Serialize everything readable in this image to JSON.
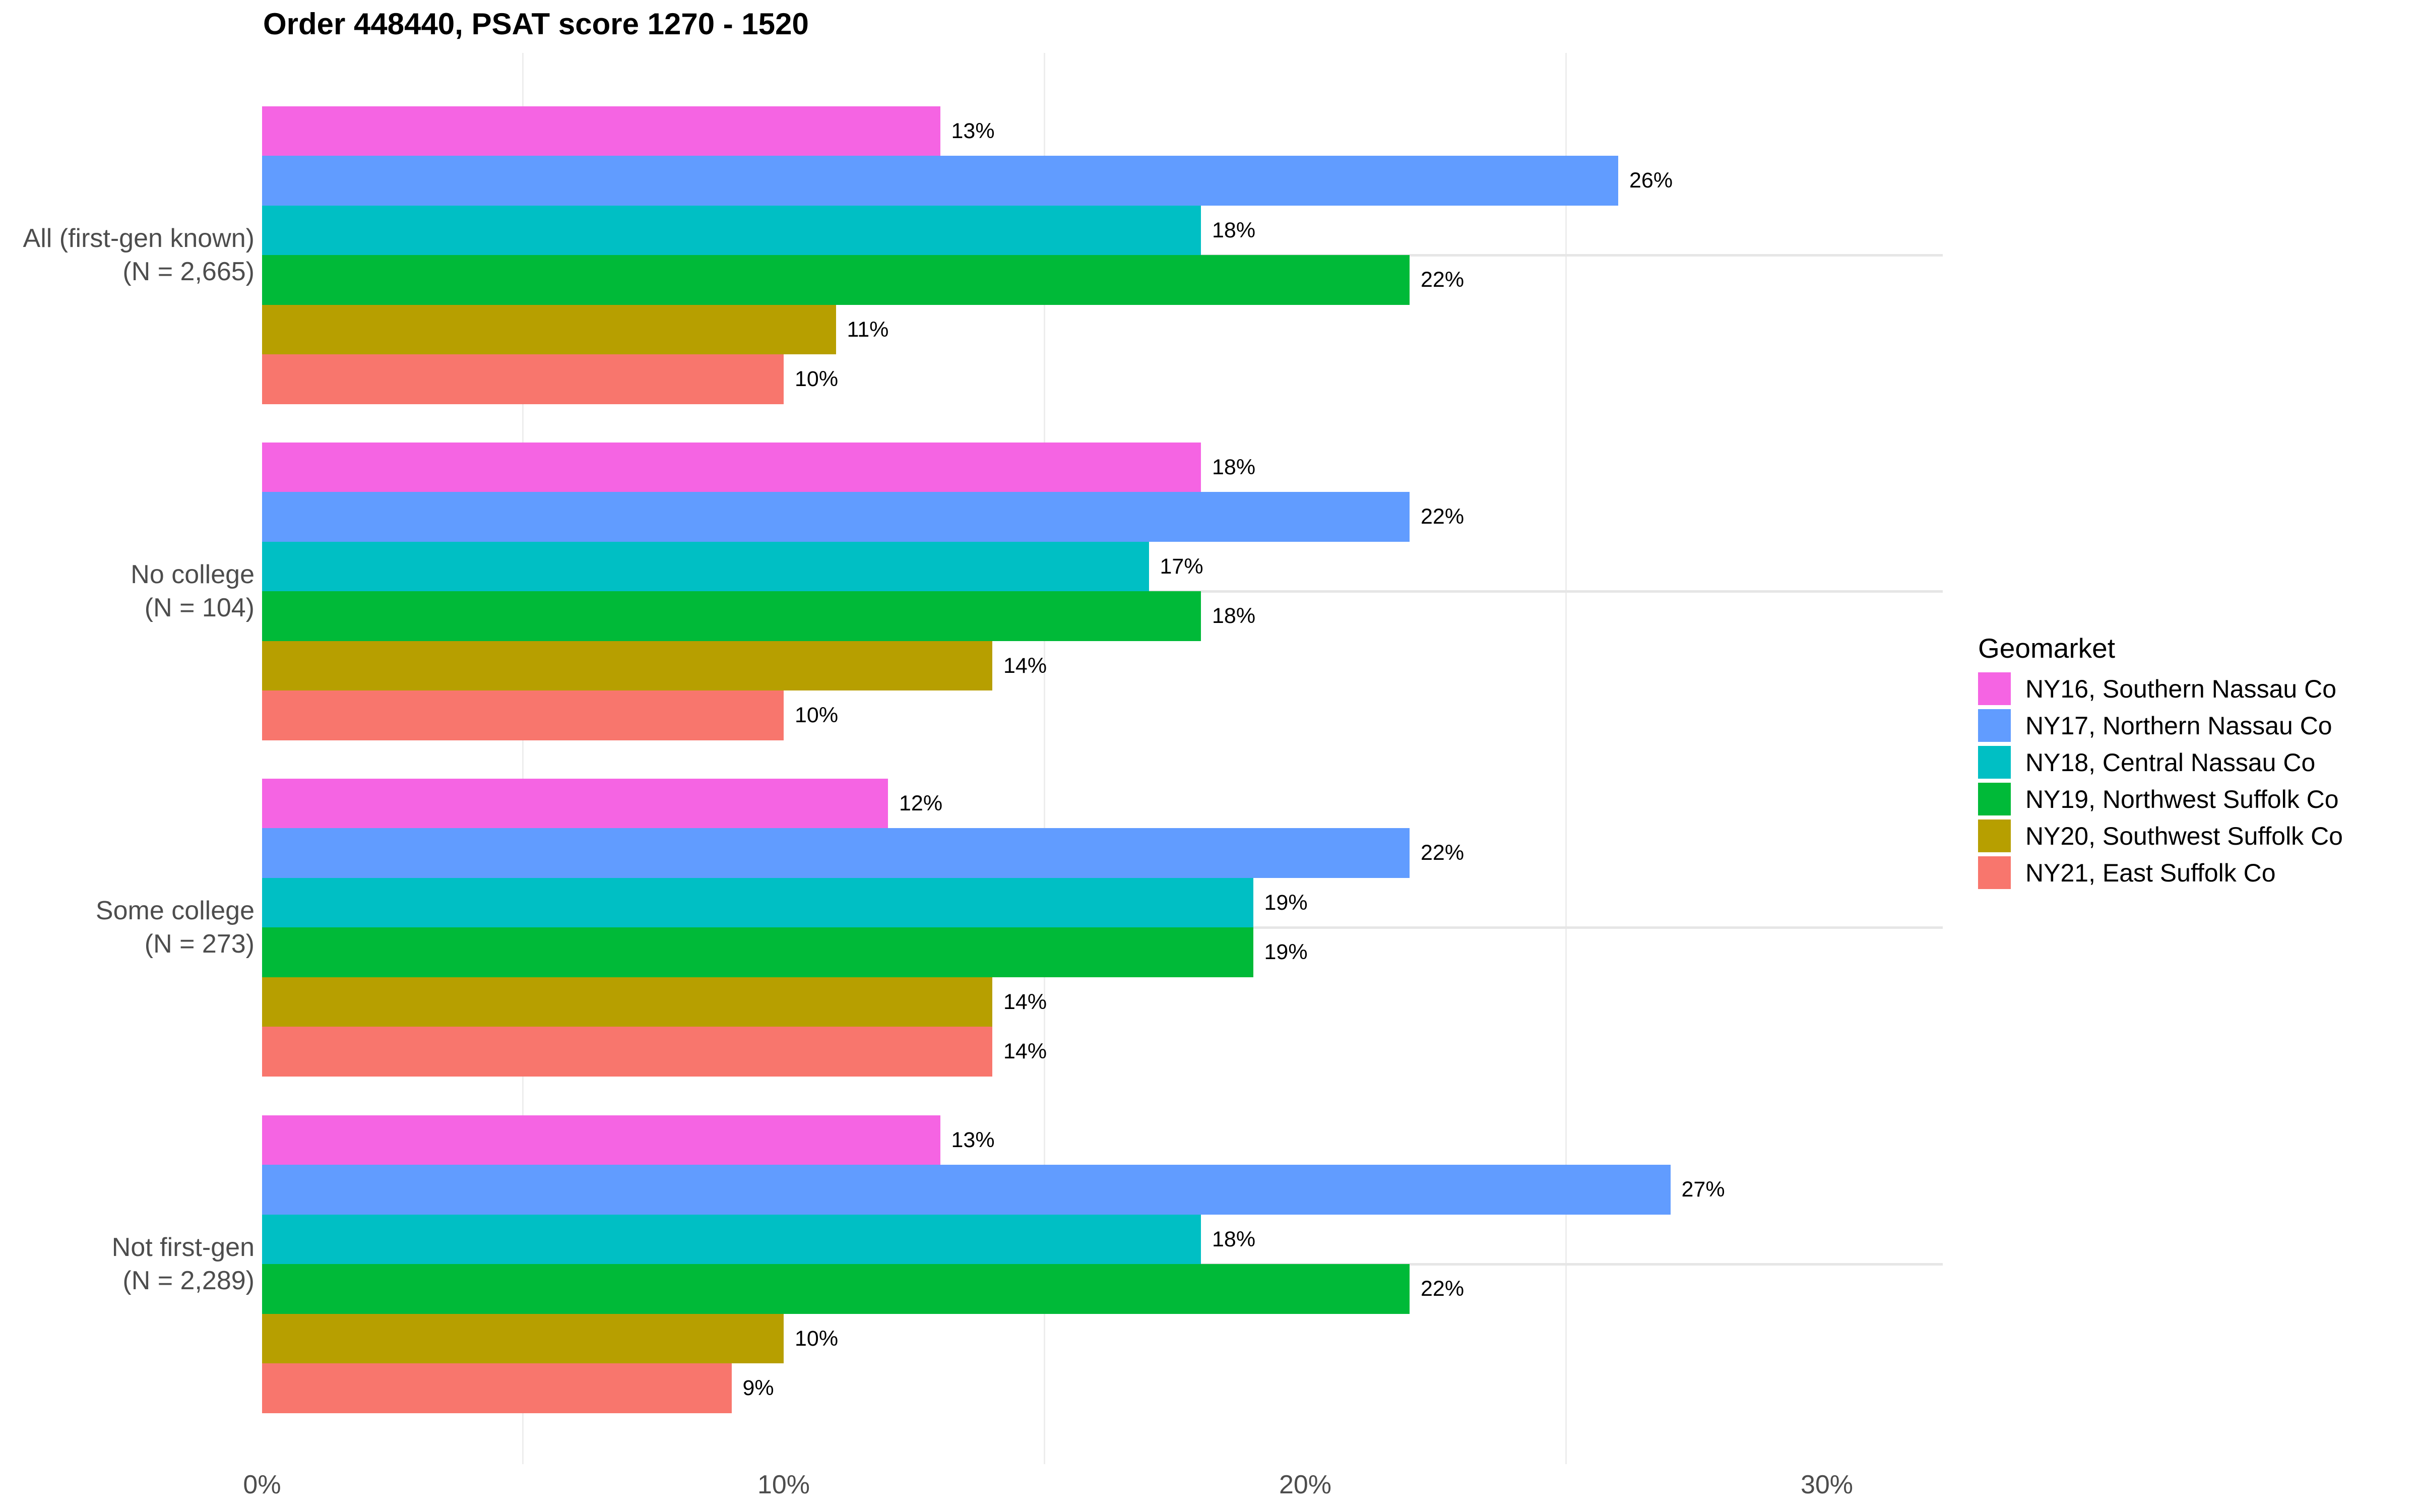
{
  "chart_data": {
    "type": "bar",
    "orientation": "horizontal",
    "title": "Order 448440, PSAT score 1270 - 1520",
    "legend_title": "Geomarket",
    "legend_position": "right",
    "xlabel": "",
    "ylabel": "",
    "xlim": [
      0,
      32
    ],
    "grid": "vertical minor gridlines at 5/15/25, horizontal major line per category",
    "minor_gridlines": [
      5,
      15,
      25
    ],
    "x_ticks": [
      {
        "value": 0,
        "label": "0%"
      },
      {
        "value": 10,
        "label": "10%"
      },
      {
        "value": 20,
        "label": "20%"
      },
      {
        "value": 30,
        "label": "30%"
      }
    ],
    "categories": [
      {
        "name": "All (first-gen known)",
        "n_label": "(N = 2,665)"
      },
      {
        "name": "No college",
        "n_label": "(N = 104)"
      },
      {
        "name": "Some college",
        "n_label": "(N = 273)"
      },
      {
        "name": "Not first-gen",
        "n_label": "(N = 2,289)"
      }
    ],
    "series": [
      {
        "name": "NY16, Southern Nassau Co",
        "color": "#F564E3",
        "values": [
          13,
          18,
          12,
          13
        ]
      },
      {
        "name": "NY17, Northern Nassau Co",
        "color": "#619CFF",
        "values": [
          26,
          22,
          22,
          27
        ]
      },
      {
        "name": "NY18, Central Nassau Co",
        "color": "#00BFC4",
        "values": [
          18,
          17,
          19,
          18
        ]
      },
      {
        "name": "NY19, Northwest Suffolk Co",
        "color": "#00BA38",
        "values": [
          22,
          18,
          19,
          22
        ]
      },
      {
        "name": "NY20, Southwest Suffolk Co",
        "color": "#B79F00",
        "values": [
          11,
          14,
          14,
          10
        ]
      },
      {
        "name": "NY21, East Suffolk Co",
        "color": "#F8766D",
        "values": [
          10,
          10,
          14,
          9
        ]
      }
    ],
    "value_suffix": "%",
    "colors": {
      "background": "#FFFFFF",
      "title_text": "#000000",
      "axis_text": "#4D4D4D",
      "value_label_text": "#000000",
      "grid_minor_x": "#EDEDED",
      "grid_major_y": "#E6E6E6"
    }
  }
}
